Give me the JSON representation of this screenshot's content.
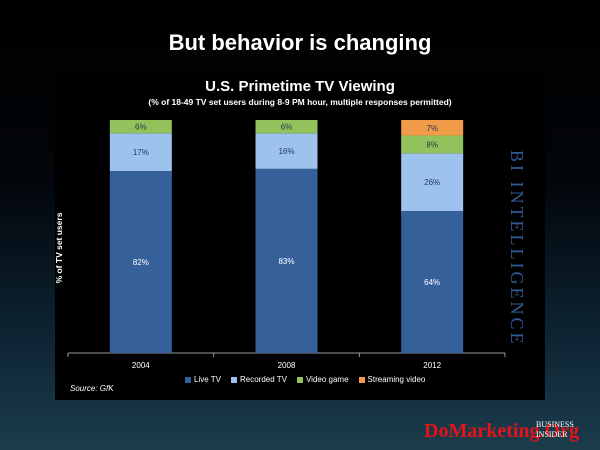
{
  "slide": {
    "title": "But behavior is changing",
    "source": "Source: GfK",
    "watermark": "BI INTELLIGENCE",
    "logo_text": "DoMarketing.Org",
    "brand_text": "BUSINESS INSIDER"
  },
  "chart_data": {
    "type": "bar",
    "stacked": true,
    "title": "U.S. Primetime TV Viewing",
    "subtitle": "(% of 18-49 TV set users during 8-9 PM hour, multiple responses permitted)",
    "xlabel": "",
    "ylabel": "% of TV set users",
    "categories": [
      "2004",
      "2008",
      "2012"
    ],
    "series": [
      {
        "name": "Live TV",
        "color": "#35609a",
        "values": [
          82,
          83,
          64
        ],
        "labels": [
          "82%",
          "83%",
          "64%"
        ]
      },
      {
        "name": "Recorded TV",
        "color": "#9ec2ee",
        "values": [
          17,
          16,
          26
        ],
        "labels": [
          "17%",
          "16%",
          "26%"
        ]
      },
      {
        "name": "Video game",
        "color": "#93c25c",
        "values": [
          6,
          6,
          8
        ],
        "labels": [
          "6%",
          "6%",
          "8%"
        ]
      },
      {
        "name": "Streaming video",
        "color": "#ef9b48",
        "values": [
          0,
          0,
          7
        ],
        "labels": [
          "",
          "",
          "7%"
        ]
      }
    ],
    "ylim": [
      0,
      105
    ],
    "grid": false,
    "legend_position": "bottom"
  }
}
